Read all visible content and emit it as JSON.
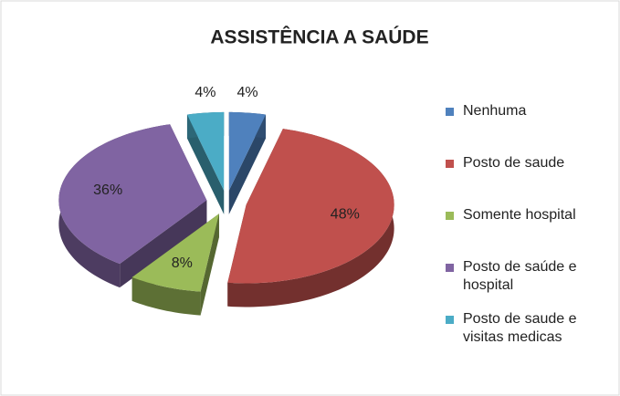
{
  "chart_data": {
    "type": "pie",
    "title": "ASSISTÊNCIA A SAÚDE",
    "categories": [
      "Nenhuma",
      "Posto de saude",
      "Somente hospital",
      "Posto de saúde e hospital",
      "Posto de saude e visitas medicas"
    ],
    "values": [
      4,
      48,
      8,
      36,
      4
    ],
    "value_labels": [
      "4%",
      "48%",
      "8%",
      "36%",
      "4%"
    ],
    "colors": [
      "#4f81bd",
      "#c0504d",
      "#9bbb59",
      "#8064a2",
      "#4bacc6"
    ],
    "legend": "right"
  }
}
